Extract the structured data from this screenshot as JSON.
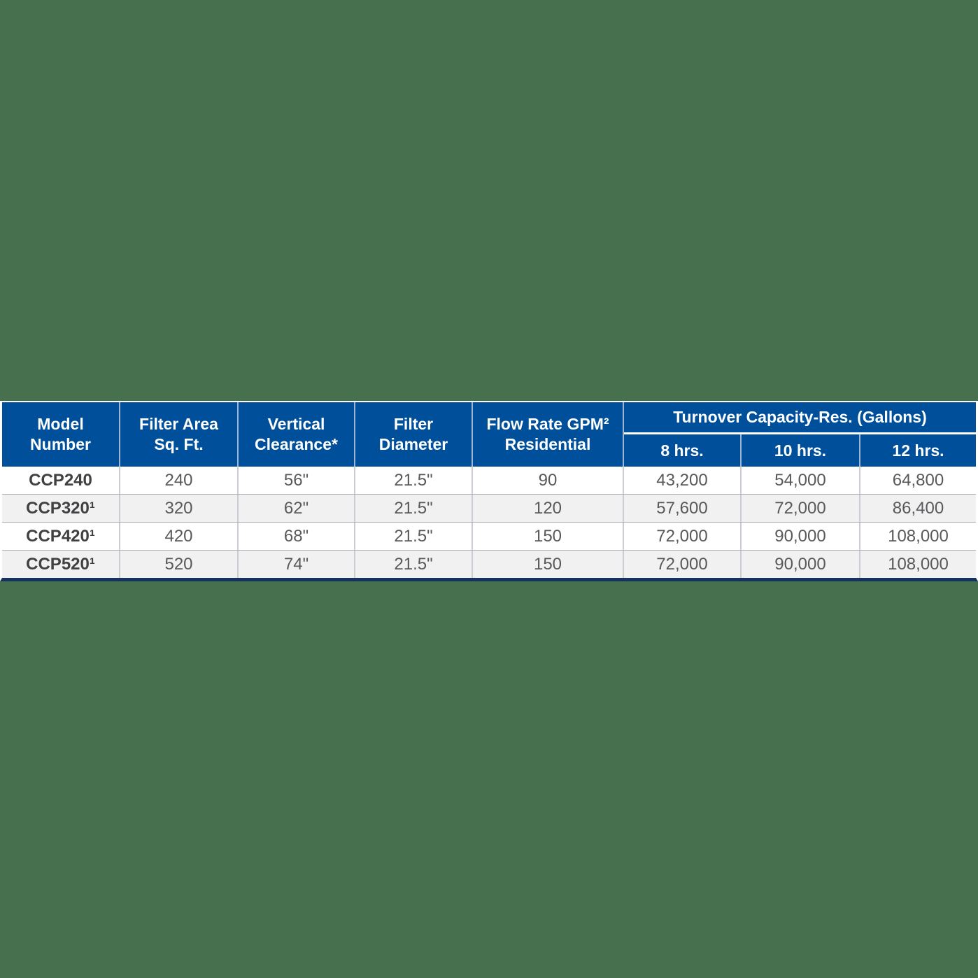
{
  "page": {
    "description": "Pool filter model specification table",
    "background_color": "#47714e"
  },
  "colors": {
    "background": "#47714e",
    "header_bg": "#004f9b",
    "header_text": "#ffffff",
    "bottom_border": "#16335e",
    "row_bg": "#ffffff",
    "row_alt_bg": "#f1f1f2",
    "body_text": "#58595b",
    "model_text": "#414042",
    "header_divider": "#9db6d3",
    "body_divider": "#c9ced4",
    "row_divider": "#abadb0",
    "outer_edge": "#ffffff"
  },
  "table": {
    "columns": [
      {
        "line1": "Model",
        "line2": "Number"
      },
      {
        "line1": "Filter Area",
        "line2": "Sq. Ft."
      },
      {
        "line1": "Vertical",
        "line2": "Clearance*"
      },
      {
        "line1": "Filter",
        "line2": "Diameter"
      },
      {
        "line1": "Flow Rate GPM²",
        "line2": "Residential"
      }
    ],
    "group": {
      "title": "Turnover Capacity-Res. (Gallons)",
      "sub": [
        "8 hrs.",
        "10 hrs.",
        "12 hrs."
      ]
    },
    "rows": [
      {
        "model": "CCP240",
        "filter_area": "240",
        "vertical_clearance": "56\"",
        "filter_diameter": "21.5\"",
        "flow_rate": "90",
        "cap_8": "43,200",
        "cap_10": "54,000",
        "cap_12": "64,800"
      },
      {
        "model": "CCP320¹",
        "filter_area": "320",
        "vertical_clearance": "62\"",
        "filter_diameter": "21.5\"",
        "flow_rate": "120",
        "cap_8": "57,600",
        "cap_10": "72,000",
        "cap_12": "86,400"
      },
      {
        "model": "CCP420¹",
        "filter_area": "420",
        "vertical_clearance": "68\"",
        "filter_diameter": "21.5\"",
        "flow_rate": "150",
        "cap_8": "72,000",
        "cap_10": "90,000",
        "cap_12": "108,000"
      },
      {
        "model": "CCP520¹",
        "filter_area": "520",
        "vertical_clearance": "74\"",
        "filter_diameter": "21.5\"",
        "flow_rate": "150",
        "cap_8": "72,000",
        "cap_10": "90,000",
        "cap_12": "108,000"
      }
    ]
  }
}
